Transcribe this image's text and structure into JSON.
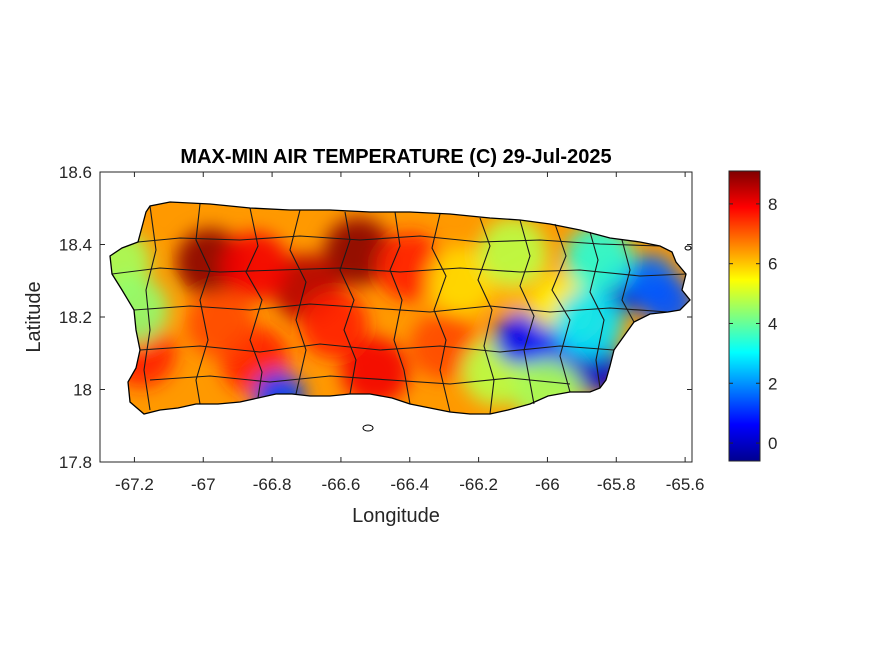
{
  "chart_data": {
    "type": "heatmap",
    "title": "MAX-MIN AIR TEMPERATURE (C) 29-Jul-2025",
    "xlabel": "Longitude",
    "ylabel": "Latitude",
    "xlim": [
      -67.3,
      -65.58
    ],
    "ylim": [
      17.8,
      18.6
    ],
    "x_ticks": [
      -67.2,
      -67,
      -66.8,
      -66.6,
      -66.4,
      -66.2,
      -66,
      -65.8,
      -65.6
    ],
    "x_tick_labels": [
      "-67.2",
      "-67",
      "-66.8",
      "-66.6",
      "-66.4",
      "-66.2",
      "-66",
      "-65.8",
      "-65.6"
    ],
    "y_ticks": [
      17.8,
      18,
      18.2,
      18.4,
      18.6
    ],
    "y_tick_labels": [
      "17.8",
      "18",
      "18.2",
      "18.4",
      "18.6"
    ],
    "colormap": "jet",
    "colorbar": {
      "range": [
        -0.6,
        9.1
      ],
      "ticks": [
        0,
        2,
        4,
        6,
        8
      ],
      "tick_labels": [
        "0",
        "2",
        "4",
        "6",
        "8"
      ]
    },
    "grid": false,
    "temperature_features": [
      {
        "lon": -66.98,
        "lat": 18.35,
        "value": 9.0
      },
      {
        "lon": -66.55,
        "lat": 18.38,
        "value": 9.0
      },
      {
        "lon": -66.7,
        "lat": 18.28,
        "value": 8.6
      },
      {
        "lon": -66.85,
        "lat": 18.34,
        "value": 8.0
      },
      {
        "lon": -66.4,
        "lat": 18.34,
        "value": 7.6
      },
      {
        "lon": -67.18,
        "lat": 18.1,
        "value": 7.6
      },
      {
        "lon": -66.5,
        "lat": 18.05,
        "value": 8.0
      },
      {
        "lon": -66.85,
        "lat": 18.08,
        "value": 7.6
      },
      {
        "lon": -66.3,
        "lat": 18.12,
        "value": 7.2
      },
      {
        "lon": -66.62,
        "lat": 18.18,
        "value": 7.6
      },
      {
        "lon": -66.95,
        "lat": 18.18,
        "value": 7.2
      },
      {
        "lon": -66.25,
        "lat": 18.3,
        "value": 5.8
      },
      {
        "lon": -66.05,
        "lat": 18.28,
        "value": 6.2
      },
      {
        "lon": -66.1,
        "lat": 18.38,
        "value": 4.8
      },
      {
        "lon": -65.95,
        "lat": 18.22,
        "value": 5.6
      },
      {
        "lon": -66.15,
        "lat": 18.05,
        "value": 4.8
      },
      {
        "lon": -66.08,
        "lat": 18.14,
        "value": 0.6
      },
      {
        "lon": -65.98,
        "lat": 18.1,
        "value": 1.0
      },
      {
        "lon": -65.86,
        "lat": 18.06,
        "value": 0.2
      },
      {
        "lon": -65.78,
        "lat": 18.28,
        "value": 0.2
      },
      {
        "lon": -65.7,
        "lat": 18.3,
        "value": 1.6
      },
      {
        "lon": -65.65,
        "lat": 18.24,
        "value": 1.4
      },
      {
        "lon": -65.85,
        "lat": 18.36,
        "value": 3.4
      },
      {
        "lon": -65.88,
        "lat": 18.18,
        "value": 2.8
      },
      {
        "lon": -66.78,
        "lat": 17.98,
        "value": 1.2
      },
      {
        "lon": -67.25,
        "lat": 18.35,
        "value": 4.6
      },
      {
        "lon": -67.2,
        "lat": 18.22,
        "value": 4.4
      },
      {
        "lon": -66.0,
        "lat": 17.99,
        "value": 4.6
      }
    ]
  }
}
